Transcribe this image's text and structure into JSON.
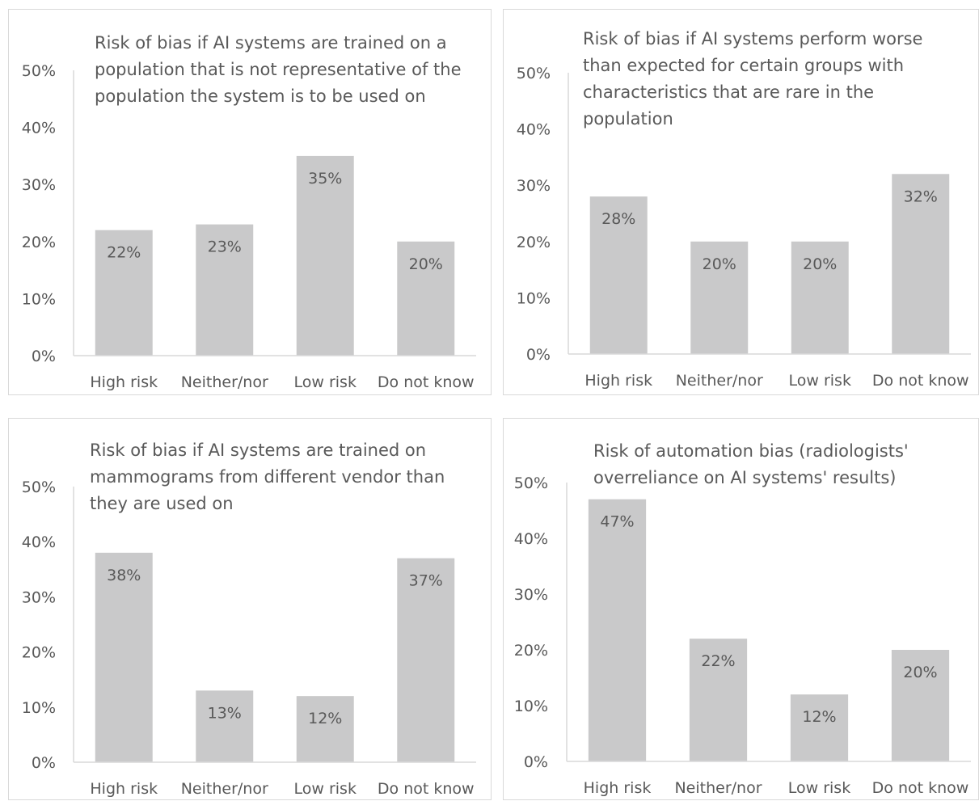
{
  "style": {
    "bar_color": "#c9c9ca",
    "text_color": "#595959",
    "axis_color": "#d9d9d9",
    "border_color": "#d9d9d9"
  },
  "chart_data": [
    {
      "type": "bar",
      "title": "Risk of bias if AI systems are trained on a population that is not representative of the population the system is to be used on",
      "categories": [
        "High risk",
        "Neither/nor",
        "Low risk",
        "Do not know"
      ],
      "values": [
        22,
        23,
        35,
        20
      ],
      "data_labels": [
        "22%",
        "23%",
        "35%",
        "20%"
      ],
      "ylim": [
        0,
        50
      ],
      "yticks": [
        0,
        10,
        20,
        30,
        40,
        50
      ],
      "ytick_labels": [
        "0%",
        "10%",
        "20%",
        "30%",
        "40%",
        "50%"
      ],
      "xlabel": "",
      "ylabel": "",
      "grid": false
    },
    {
      "type": "bar",
      "title": "Risk of bias if AI systems perform worse than expected for certain groups with characteristics that are rare in the population",
      "categories": [
        "High risk",
        "Neither/nor",
        "Low risk",
        "Do not know"
      ],
      "values": [
        28,
        20,
        20,
        32
      ],
      "data_labels": [
        "28%",
        "20%",
        "20%",
        "32%"
      ],
      "ylim": [
        0,
        50
      ],
      "yticks": [
        0,
        10,
        20,
        30,
        40,
        50
      ],
      "ytick_labels": [
        "0%",
        "10%",
        "20%",
        "30%",
        "40%",
        "50%"
      ],
      "xlabel": "",
      "ylabel": "",
      "grid": false
    },
    {
      "type": "bar",
      "title": "Risk of bias if AI systems are trained on mammograms from different vendor than they are used on",
      "categories": [
        "High risk",
        "Neither/nor",
        "Low risk",
        "Do not know"
      ],
      "values": [
        38,
        13,
        12,
        37
      ],
      "data_labels": [
        "38%",
        "13%",
        "12%",
        "37%"
      ],
      "ylim": [
        0,
        50
      ],
      "yticks": [
        0,
        10,
        20,
        30,
        40,
        50
      ],
      "ytick_labels": [
        "0%",
        "10%",
        "20%",
        "30%",
        "40%",
        "50%"
      ],
      "xlabel": "",
      "ylabel": "",
      "grid": false
    },
    {
      "type": "bar",
      "title": "Risk of automation bias (radiologists' overreliance on AI systems' results)",
      "categories": [
        "High risk",
        "Neither/nor",
        "Low risk",
        "Do not know"
      ],
      "values": [
        47,
        22,
        12,
        20
      ],
      "data_labels": [
        "47%",
        "22%",
        "12%",
        "20%"
      ],
      "ylim": [
        0,
        50
      ],
      "yticks": [
        0,
        10,
        20,
        30,
        40,
        50
      ],
      "ytick_labels": [
        "0%",
        "10%",
        "20%",
        "30%",
        "40%",
        "50%"
      ],
      "xlabel": "",
      "ylabel": "",
      "grid": false
    }
  ]
}
